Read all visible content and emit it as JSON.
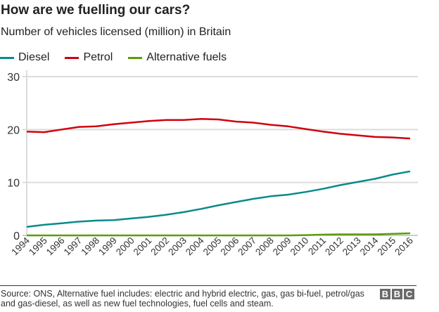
{
  "header": {
    "title": "How are we fuelling our cars?",
    "subtitle": "Number of vehicles licensed (million) in Britain"
  },
  "footer": {
    "source": "Source: ONS, Alternative fuel includes: electric and hybrid electric, gas, gas bi-fuel, petrol/gas and gas-diesel, as well as new fuel technologies, fuel cells and steam.",
    "logo": "BBC"
  },
  "chart_data": {
    "type": "line",
    "title": "How are we fuelling our cars?",
    "subtitle": "Number of vehicles licensed (million) in Britain",
    "x": [
      1994,
      1995,
      1996,
      1997,
      1998,
      1999,
      2000,
      2001,
      2002,
      2003,
      2004,
      2005,
      2006,
      2007,
      2008,
      2009,
      2010,
      2011,
      2012,
      2013,
      2014,
      2015,
      2016
    ],
    "ylim": [
      0,
      30
    ],
    "yticks": [
      0,
      10,
      20,
      30
    ],
    "grid": true,
    "legend": "top-left",
    "series": [
      {
        "name": "Diesel",
        "color": "#098a8c",
        "values": [
          1.6,
          2.0,
          2.3,
          2.6,
          2.8,
          2.9,
          3.2,
          3.5,
          3.9,
          4.4,
          5.0,
          5.7,
          6.3,
          6.9,
          7.4,
          7.7,
          8.2,
          8.8,
          9.5,
          10.1,
          10.7,
          11.5,
          12.1
        ]
      },
      {
        "name": "Petrol",
        "color": "#d0020f",
        "values": [
          19.6,
          19.5,
          20.0,
          20.5,
          20.6,
          21.0,
          21.3,
          21.6,
          21.8,
          21.8,
          22.0,
          21.9,
          21.5,
          21.3,
          20.9,
          20.6,
          20.1,
          19.6,
          19.2,
          18.9,
          18.6,
          18.5,
          18.3
        ]
      },
      {
        "name": "Alternative fuels",
        "color": "#5a9d08",
        "values": [
          0,
          0,
          0,
          0,
          0,
          0,
          0,
          0,
          0,
          0,
          0,
          0,
          0,
          0,
          0,
          0,
          0.05,
          0.15,
          0.2,
          0.2,
          0.2,
          0.3,
          0.4
        ]
      }
    ]
  }
}
